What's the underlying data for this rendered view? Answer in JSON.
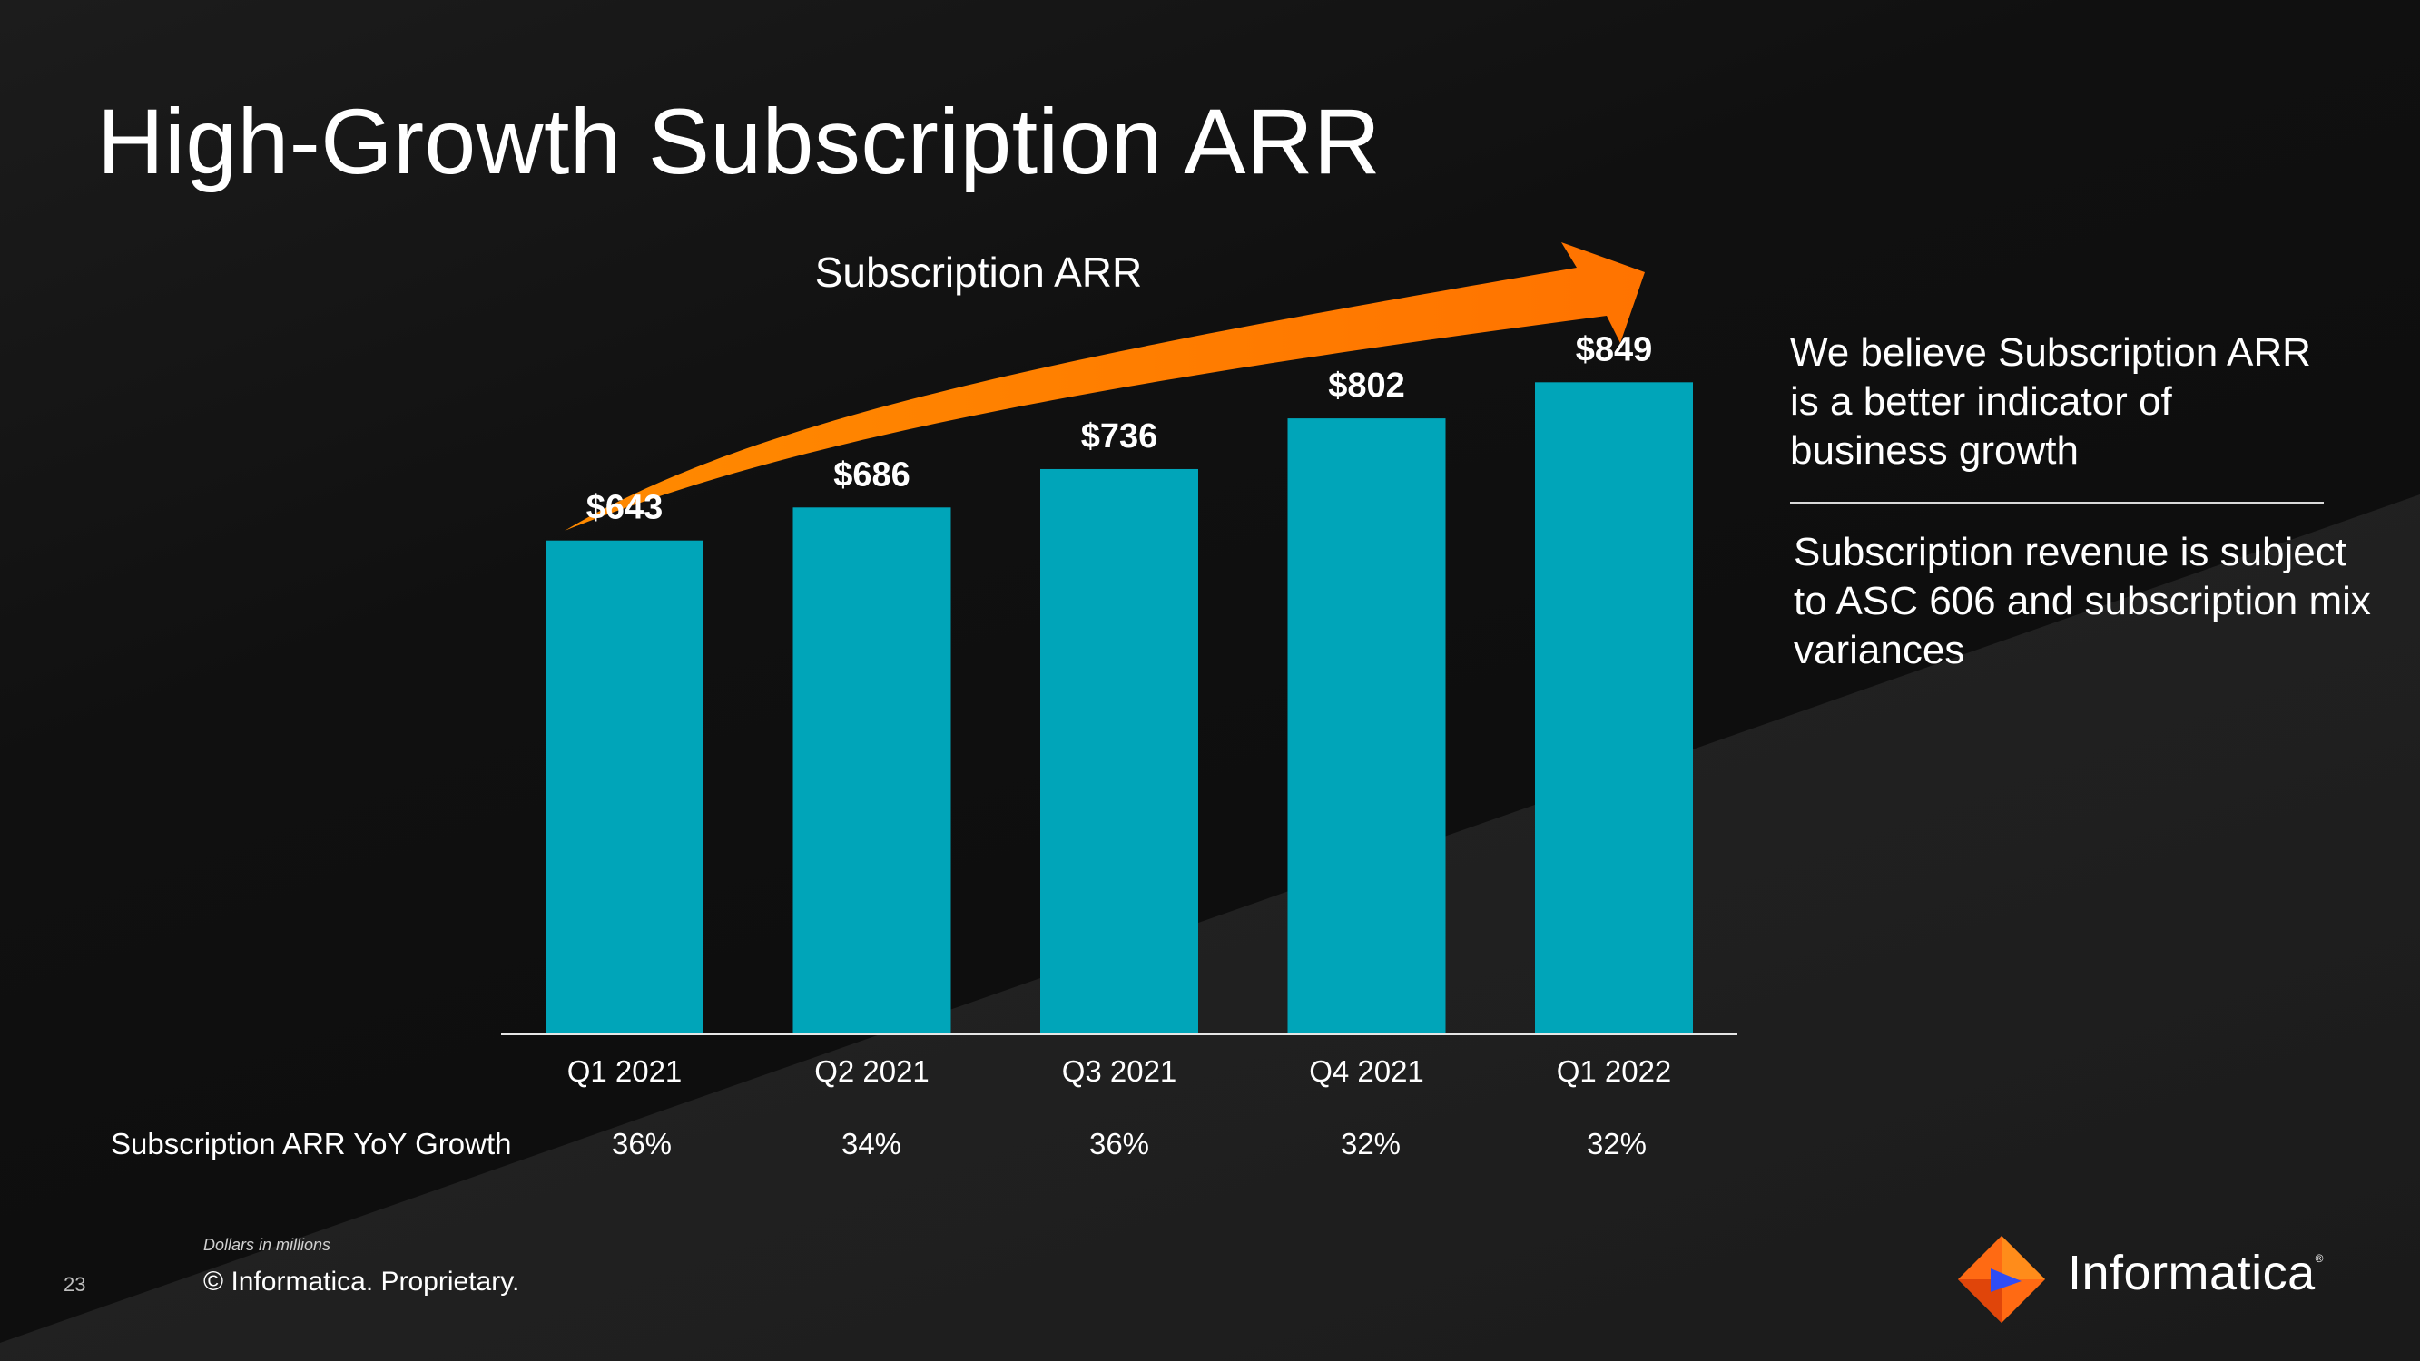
{
  "slide": {
    "title": "High-Growth Subscription ARR",
    "page_number": "23",
    "footnote": "Dollars in millions",
    "copyright": "© Informatica. Proprietary.",
    "brand": {
      "name": "Informatica",
      "reg_mark": "®"
    },
    "side_text": [
      "We believe Subscription ARR is a better indicator of business growth",
      "Subscription revenue is subject to ASC 606 and subscription mix variances"
    ],
    "growth_row": {
      "label": "Subscription ARR YoY Growth",
      "values": [
        "36%",
        "34%",
        "36%",
        "32%",
        "32%"
      ]
    }
  },
  "colors": {
    "bar": "#00a5b9",
    "arrow": "#ff7d00",
    "logo_orange": "#ff6a13",
    "logo_blue": "#2f4df6"
  },
  "chart_data": {
    "type": "bar",
    "title": "Subscription ARR",
    "categories": [
      "Q1 2021",
      "Q2 2021",
      "Q3 2021",
      "Q4 2021",
      "Q1 2022"
    ],
    "values": [
      643,
      686,
      736,
      802,
      849
    ],
    "value_labels": [
      "$643",
      "$686",
      "$736",
      "$802",
      "$849"
    ],
    "unit": "Dollars in millions",
    "ylim": [
      0,
      860
    ],
    "grid": false,
    "legend": "none",
    "annotation": "growth arrow rising left to right above bars"
  }
}
